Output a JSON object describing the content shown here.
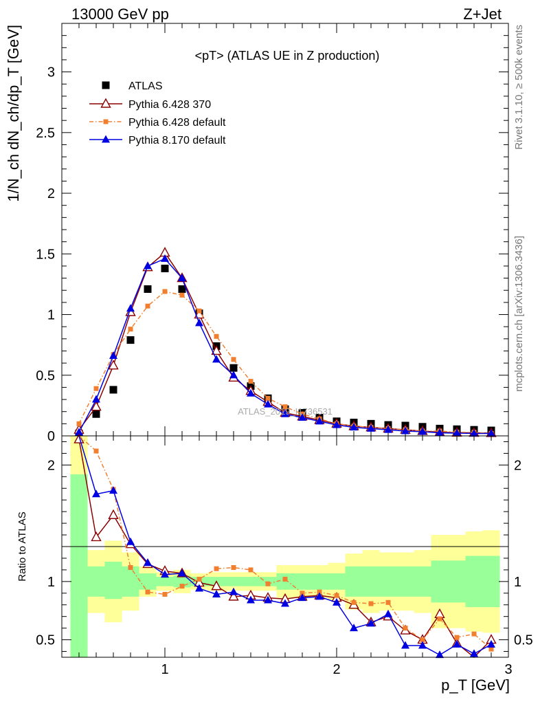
{
  "header": {
    "left": "13000 GeV pp",
    "right": "Z+Jet"
  },
  "side_labels": {
    "rivet": "Rivet 3.1.10, ≥ 500k events",
    "mcplots": "mcplots.cern.ch [arXiv:1306.3436]"
  },
  "watermark": "ATLAS_2019_I1736531",
  "chart_data": [
    {
      "type": "scatter",
      "title": "<pT> (ATLAS UE in Z production)",
      "xlabel": "p_T [GeV]",
      "ylabel": "1/N_ch dN_ch/dp_T [GeV]",
      "xlim": [
        0.4,
        3.0
      ],
      "ylim": [
        0,
        3.4
      ],
      "xticks": [
        1,
        2,
        3
      ],
      "yticks": [
        0,
        0.5,
        1,
        1.5,
        2,
        2.5,
        3
      ],
      "ytick_labels": [
        "0",
        "0.5",
        "1",
        "1.5",
        "2",
        "2.5",
        "3"
      ],
      "legend_position": "top-left",
      "x": [
        0.5,
        0.6,
        0.7,
        0.8,
        0.9,
        1.0,
        1.1,
        1.2,
        1.3,
        1.4,
        1.5,
        1.6,
        1.7,
        1.8,
        1.9,
        2.0,
        2.1,
        2.2,
        2.3,
        2.4,
        2.5,
        2.6,
        2.7,
        2.8,
        2.9
      ],
      "series": [
        {
          "name": "ATLAS",
          "color": "#000000",
          "marker": "square",
          "values": [
            0.02,
            0.18,
            0.38,
            0.79,
            1.21,
            1.38,
            1.21,
            1.01,
            0.74,
            0.56,
            0.41,
            0.31,
            0.22,
            0.19,
            0.15,
            0.12,
            0.11,
            0.1,
            0.09,
            0.085,
            0.075,
            0.06,
            0.055,
            0.05,
            0.045
          ]
        },
        {
          "name": "Pythia 6.428 370",
          "color": "#8b0000",
          "marker": "open-triangle",
          "values": [
            0.05,
            0.24,
            0.58,
            1.02,
            1.39,
            1.51,
            1.3,
            1.0,
            0.7,
            0.48,
            0.37,
            0.28,
            0.19,
            0.16,
            0.13,
            0.1,
            0.08,
            0.07,
            0.06,
            0.05,
            0.04,
            0.03,
            0.026,
            0.025,
            0.023
          ]
        },
        {
          "name": "Pythia 6.428 default",
          "color": "#f08030",
          "marker": "small-square",
          "dashed": true,
          "values": [
            0.1,
            0.39,
            0.67,
            0.88,
            1.07,
            1.19,
            1.16,
            1.03,
            0.82,
            0.63,
            0.45,
            0.31,
            0.24,
            0.18,
            0.14,
            0.1,
            0.08,
            0.07,
            0.06,
            0.05,
            0.04,
            0.04,
            0.03,
            0.03,
            0.02
          ]
        },
        {
          "name": "Pythia 8.170 default",
          "color": "#0000e0",
          "marker": "filled-triangle",
          "values": [
            0.03,
            0.3,
            0.66,
            1.05,
            1.4,
            1.46,
            1.3,
            0.93,
            0.63,
            0.5,
            0.35,
            0.26,
            0.18,
            0.15,
            0.12,
            0.09,
            0.07,
            0.06,
            0.05,
            0.04,
            0.035,
            0.025,
            0.023,
            0.02,
            0.02
          ]
        }
      ]
    },
    {
      "type": "line",
      "ylabel": "Ratio to ATLAS",
      "xlabel": "p_T [GeV]",
      "xlim": [
        0.4,
        3.0
      ],
      "ylim": [
        0.35,
        2.25
      ],
      "yticks": [
        0.5,
        1,
        2
      ],
      "ytick_labels": [
        "0.5",
        "1",
        "2"
      ],
      "xticks": [
        1,
        2,
        3
      ],
      "xtick_labels": [
        "1",
        "2",
        "3"
      ],
      "reference_line": 1,
      "bands": {
        "inner_color": "#99ff99",
        "outer_color": "#ffff99",
        "edges": [
          0.45,
          0.55,
          0.65,
          0.75,
          0.85,
          0.95,
          1.05,
          1.15,
          1.25,
          1.35,
          1.45,
          1.55,
          1.65,
          1.75,
          1.85,
          1.95,
          2.05,
          2.15,
          2.25,
          2.35,
          2.45,
          2.55,
          2.65,
          2.75,
          2.85,
          2.95
        ],
        "inner_lo": [
          0.35,
          0.87,
          0.85,
          0.87,
          0.93,
          0.96,
          0.95,
          0.96,
          0.96,
          0.96,
          0.96,
          0.96,
          0.93,
          0.93,
          0.93,
          0.93,
          0.87,
          0.87,
          0.87,
          0.87,
          0.87,
          0.82,
          0.82,
          0.78,
          0.78
        ],
        "inner_hi": [
          1.92,
          1.13,
          1.17,
          1.13,
          1.07,
          1.04,
          1.05,
          1.04,
          1.04,
          1.04,
          1.04,
          1.04,
          1.07,
          1.07,
          1.07,
          1.07,
          1.13,
          1.13,
          1.13,
          1.13,
          1.13,
          1.18,
          1.18,
          1.22,
          1.22
        ],
        "outer_lo": [
          0.35,
          0.73,
          0.65,
          0.75,
          0.87,
          0.92,
          0.9,
          0.93,
          0.92,
          0.92,
          0.92,
          0.92,
          0.86,
          0.86,
          0.86,
          0.84,
          0.76,
          0.73,
          0.75,
          0.75,
          0.73,
          0.6,
          0.6,
          0.57,
          0.56
        ],
        "outer_hi": [
          2.25,
          1.27,
          1.35,
          1.25,
          1.13,
          1.08,
          1.1,
          1.07,
          1.08,
          1.08,
          1.08,
          1.08,
          1.14,
          1.14,
          1.14,
          1.16,
          1.24,
          1.27,
          1.25,
          1.25,
          1.27,
          1.4,
          1.4,
          1.43,
          1.44
        ]
      },
      "x": [
        0.5,
        0.6,
        0.7,
        0.8,
        0.9,
        1.0,
        1.1,
        1.2,
        1.3,
        1.4,
        1.5,
        1.6,
        1.7,
        1.8,
        1.9,
        2.0,
        2.1,
        2.2,
        2.3,
        2.4,
        2.5,
        2.6,
        2.7,
        2.8,
        2.9
      ],
      "series": [
        {
          "name": "Pythia 6.428 370",
          "color": "#8b0000",
          "marker": "open-triangle",
          "values": [
            2.22,
            1.38,
            1.57,
            1.32,
            1.15,
            1.09,
            1.07,
            0.99,
            0.96,
            0.87,
            0.88,
            0.86,
            0.85,
            0.87,
            0.88,
            0.86,
            0.8,
            0.65,
            0.7,
            0.58,
            0.5,
            0.72,
            0.47,
            0.31,
            0.5
          ]
        },
        {
          "name": "Pythia 6.428 default",
          "color": "#f08030",
          "marker": "small-square",
          "dashed": true,
          "values": [
            2.6,
            2.12,
            1.79,
            1.12,
            0.91,
            0.89,
            0.96,
            1.02,
            1.11,
            1.12,
            1.1,
            0.98,
            1.02,
            0.9,
            0.91,
            0.88,
            0.82,
            0.81,
            0.82,
            0.6,
            0.5,
            0.68,
            0.52,
            0.55,
            0.42
          ]
        },
        {
          "name": "Pythia 8.170 default",
          "color": "#0000e0",
          "marker": "filled-triangle",
          "values": [
            2.7,
            1.75,
            1.78,
            1.34,
            1.16,
            1.06,
            1.07,
            0.94,
            0.89,
            0.91,
            0.84,
            0.84,
            0.81,
            0.86,
            0.87,
            0.82,
            0.6,
            0.64,
            0.72,
            0.45,
            0.45,
            0.37,
            0.46,
            0.38,
            0.46
          ]
        }
      ]
    }
  ]
}
